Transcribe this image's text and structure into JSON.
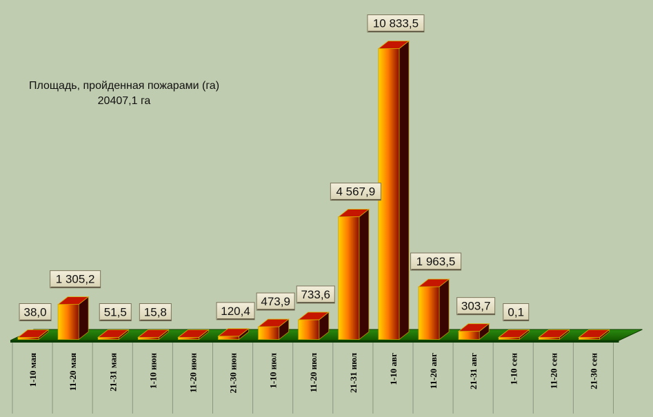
{
  "chart_data": {
    "type": "bar",
    "title": "Площадь, пройденная пожарами (га)",
    "subtitle": "20407,1 га",
    "categories": [
      "1-10   мая",
      "11-20 мая",
      "21-31 мая",
      "1-10   июн",
      "11-20 июн",
      "21-30 июн",
      "1-10  июл",
      "11-20 июл",
      "21-31 июл",
      "1-10     авг",
      "11-20  авг",
      "21-31  авг",
      "1-10   сен",
      "11-20 сен",
      "21-30 сен"
    ],
    "values": [
      38.0,
      1305.2,
      51.5,
      15.8,
      0,
      120.4,
      473.9,
      733.6,
      4567.9,
      10833.5,
      1963.5,
      303.7,
      0.1,
      0,
      0
    ],
    "data_labels": [
      "38,0",
      "1 305,2",
      "51,5",
      "15,8",
      "",
      "120,4",
      "473,9",
      "733,6",
      "4 567,9",
      "10 833,5",
      "1 963,5",
      "303,7",
      "0,1",
      "",
      ""
    ],
    "xlabel": "",
    "ylabel": "",
    "ylim": [
      0,
      10833.5
    ],
    "grid": false,
    "legend": "none",
    "colors": {
      "background": "#c0ccaf",
      "floor": "#1a6e00",
      "floor_edge": "#0c3d00",
      "bar_light": "#ffd200",
      "bar_mid": "#ff7a00",
      "bar_dark": "#8a0e00",
      "bar_side": "#3a0500",
      "bar_top": "#c41600",
      "label_box": "#e6e0c4",
      "label_border": "#7a735a"
    }
  }
}
